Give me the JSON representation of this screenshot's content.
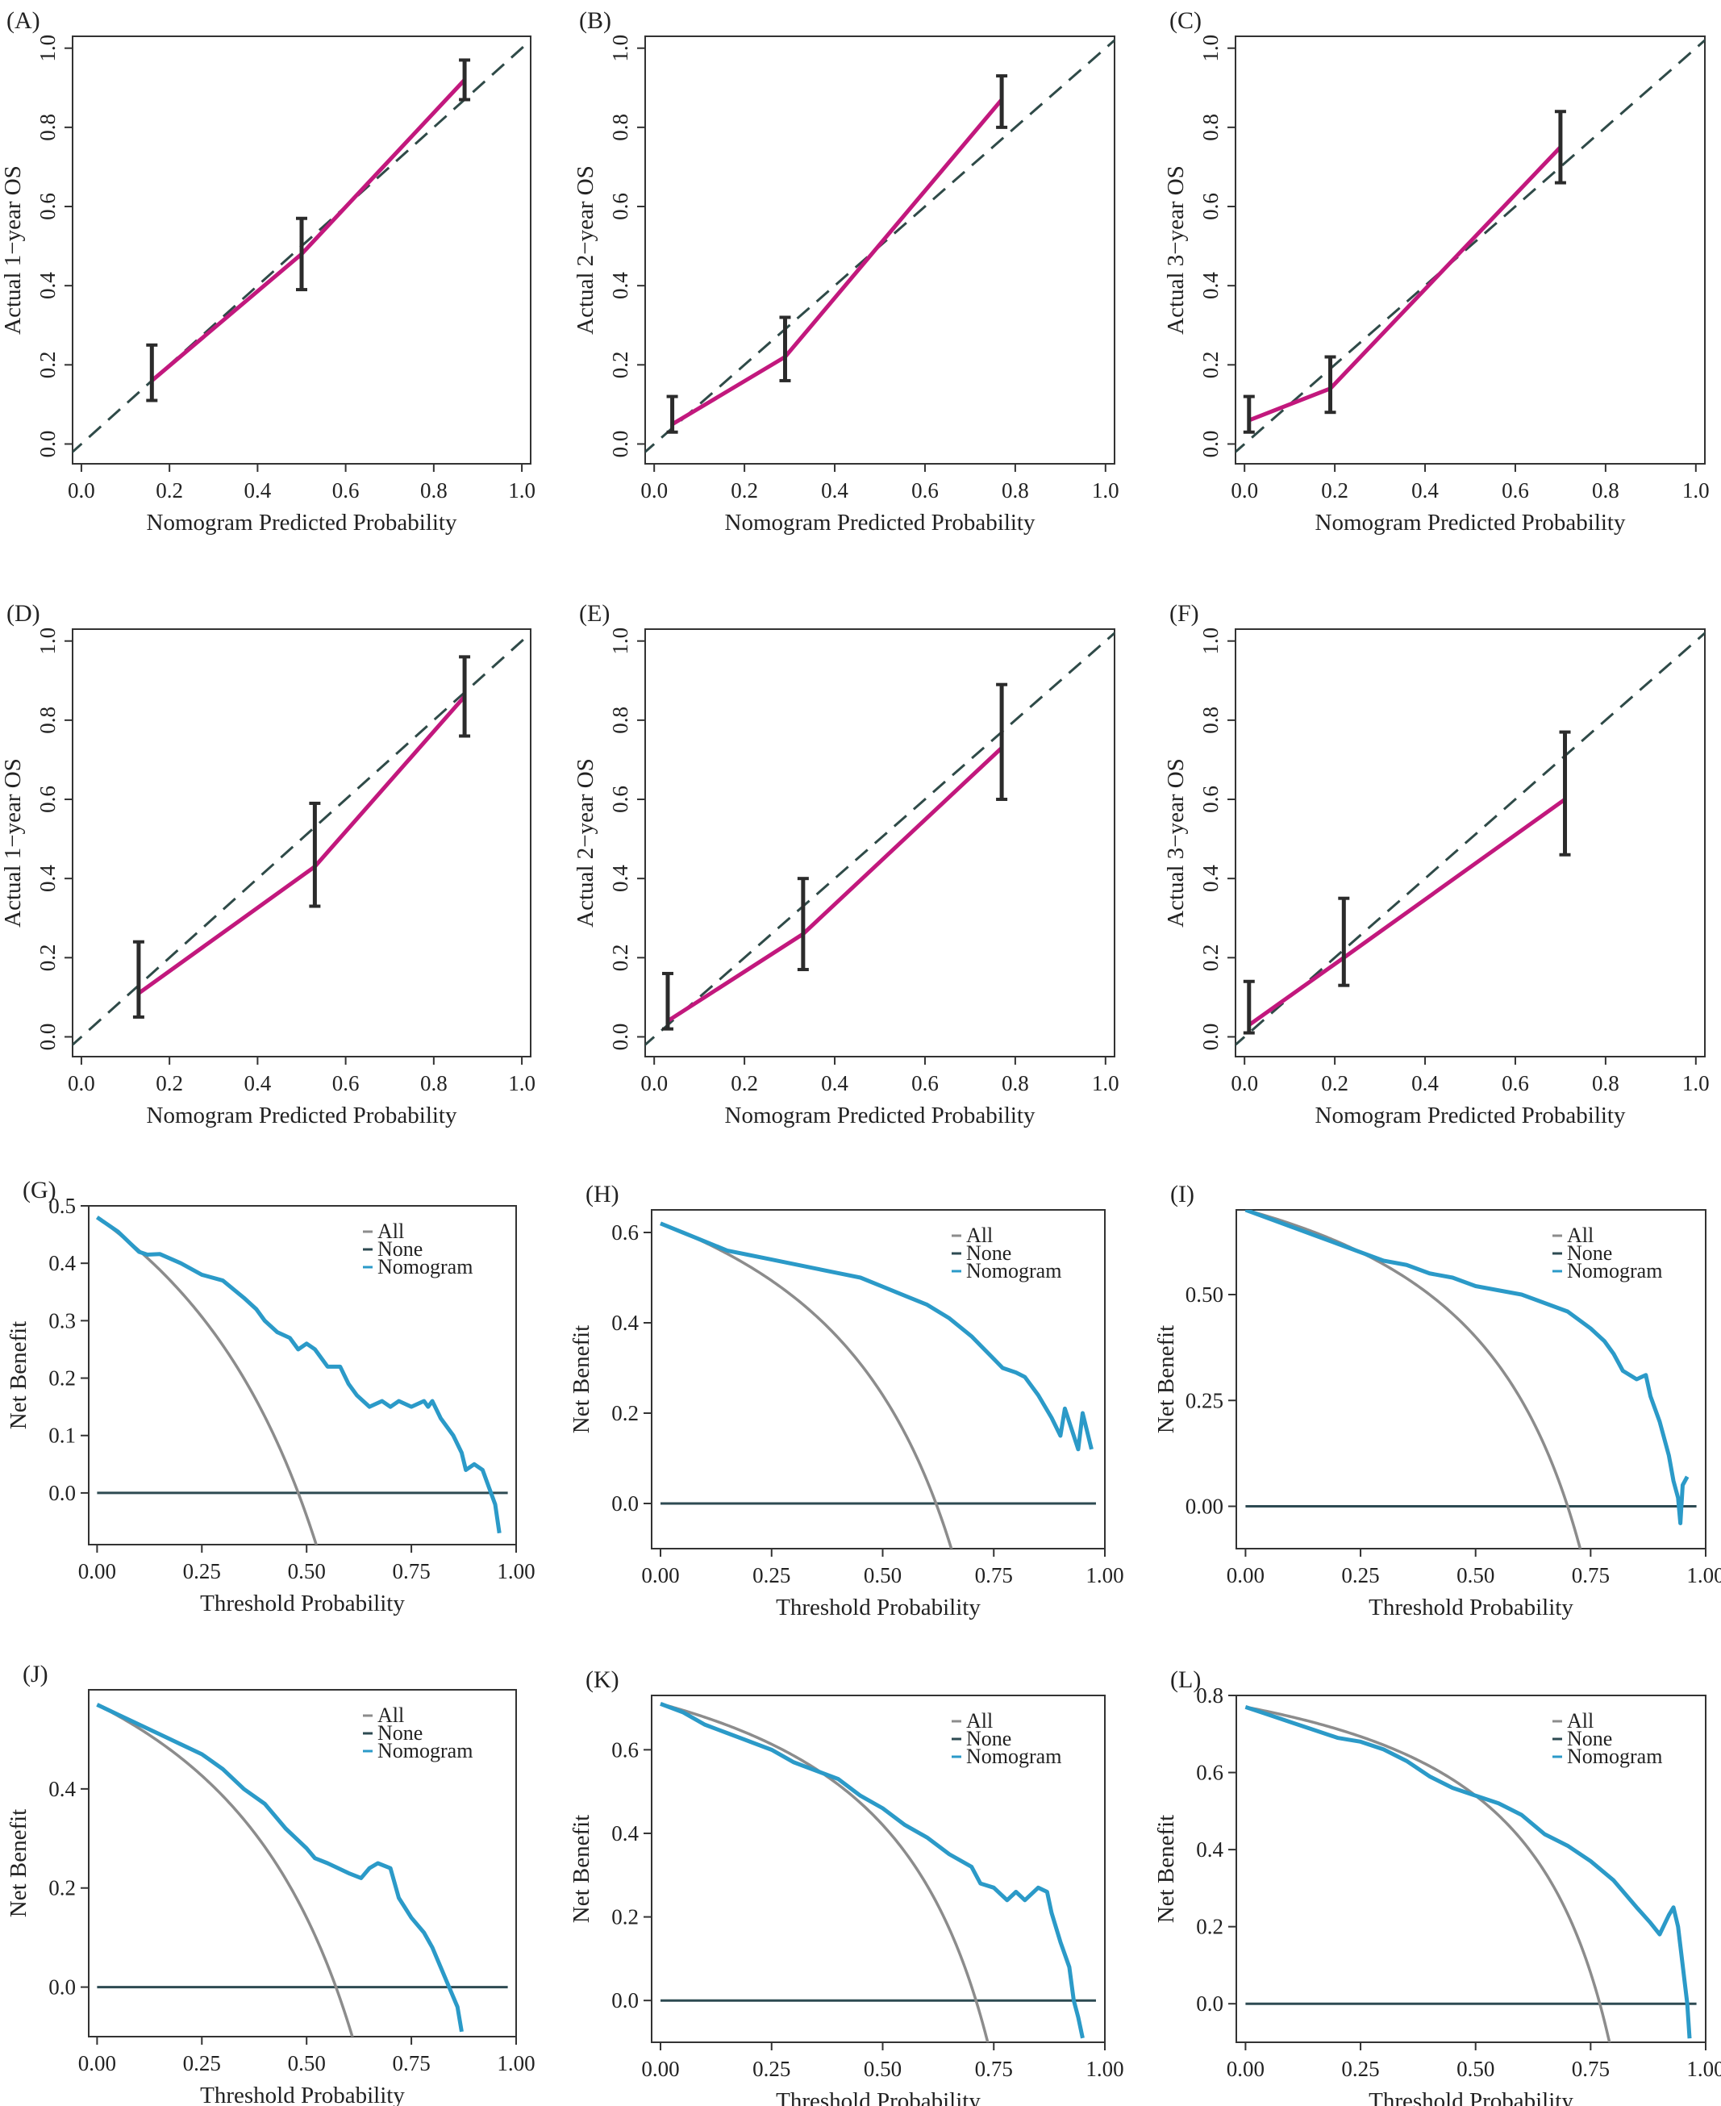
{
  "colors": {
    "calibration_line": "#c2187d",
    "diagonal": "#2f4a48",
    "error_bar": "#2b2b2b",
    "all_curve": "#8c8c8c",
    "none_line": "#2d4a52",
    "nomogram_curve": "#2b9ac8",
    "frame": "#333333"
  },
  "chart_data": [
    {
      "panel": "(A)",
      "type": "line",
      "xlabel": "Nomogram Predicted Probability",
      "ylabel": "Actual 1−year OS",
      "xlim": [
        -0.02,
        1.02
      ],
      "ylim": [
        -0.05,
        1.03
      ],
      "xticks": [
        "0.0",
        "0.2",
        "0.4",
        "0.6",
        "0.8",
        "1.0"
      ],
      "yticks": [
        "0.0",
        "0.2",
        "0.4",
        "0.6",
        "0.8",
        "1.0"
      ],
      "x": [
        0.16,
        0.5,
        0.87
      ],
      "y": [
        0.16,
        0.48,
        0.92
      ],
      "ci_low": [
        0.11,
        0.39,
        0.87
      ],
      "ci_high": [
        0.25,
        0.57,
        0.97
      ]
    },
    {
      "panel": "(B)",
      "type": "line",
      "xlabel": "Nomogram Predicted Probability",
      "ylabel": "Actual 2−year OS",
      "xlim": [
        -0.02,
        1.02
      ],
      "ylim": [
        -0.05,
        1.03
      ],
      "xticks": [
        "0.0",
        "0.2",
        "0.4",
        "0.6",
        "0.8",
        "1.0"
      ],
      "yticks": [
        "0.0",
        "0.2",
        "0.4",
        "0.6",
        "0.8",
        "1.0"
      ],
      "x": [
        0.04,
        0.29,
        0.77
      ],
      "y": [
        0.05,
        0.22,
        0.87
      ],
      "ci_low": [
        0.03,
        0.16,
        0.8
      ],
      "ci_high": [
        0.12,
        0.32,
        0.93
      ]
    },
    {
      "panel": "(C)",
      "type": "line",
      "xlabel": "Nomogram Predicted Probability",
      "ylabel": "Actual 3−year OS",
      "xlim": [
        -0.02,
        1.02
      ],
      "ylim": [
        -0.05,
        1.03
      ],
      "xticks": [
        "0.0",
        "0.2",
        "0.4",
        "0.6",
        "0.8",
        "1.0"
      ],
      "yticks": [
        "0.0",
        "0.2",
        "0.4",
        "0.6",
        "0.8",
        "1.0"
      ],
      "x": [
        0.01,
        0.19,
        0.7
      ],
      "y": [
        0.06,
        0.14,
        0.75
      ],
      "ci_low": [
        0.03,
        0.08,
        0.66
      ],
      "ci_high": [
        0.12,
        0.22,
        0.84
      ]
    },
    {
      "panel": "(D)",
      "type": "line",
      "xlabel": "Nomogram Predicted Probability",
      "ylabel": "Actual 1−year OS",
      "xlim": [
        -0.02,
        1.02
      ],
      "ylim": [
        -0.05,
        1.03
      ],
      "xticks": [
        "0.0",
        "0.2",
        "0.4",
        "0.6",
        "0.8",
        "1.0"
      ],
      "yticks": [
        "0.0",
        "0.2",
        "0.4",
        "0.6",
        "0.8",
        "1.0"
      ],
      "x": [
        0.13,
        0.53,
        0.87
      ],
      "y": [
        0.11,
        0.43,
        0.86
      ],
      "ci_low": [
        0.05,
        0.33,
        0.76
      ],
      "ci_high": [
        0.24,
        0.59,
        0.96
      ]
    },
    {
      "panel": "(E)",
      "type": "line",
      "xlabel": "Nomogram Predicted Probability",
      "ylabel": "Actual 2−year OS",
      "xlim": [
        -0.02,
        1.02
      ],
      "ylim": [
        -0.05,
        1.03
      ],
      "xticks": [
        "0.0",
        "0.2",
        "0.4",
        "0.6",
        "0.8",
        "1.0"
      ],
      "yticks": [
        "0.0",
        "0.2",
        "0.4",
        "0.6",
        "0.8",
        "1.0"
      ],
      "x": [
        0.03,
        0.33,
        0.77
      ],
      "y": [
        0.04,
        0.26,
        0.73
      ],
      "ci_low": [
        0.02,
        0.17,
        0.6
      ],
      "ci_high": [
        0.16,
        0.4,
        0.89
      ]
    },
    {
      "panel": "(F)",
      "type": "line",
      "xlabel": "Nomogram Predicted Probability",
      "ylabel": "Actual 3−year OS",
      "xlim": [
        -0.02,
        1.02
      ],
      "ylim": [
        -0.05,
        1.03
      ],
      "xticks": [
        "0.0",
        "0.2",
        "0.4",
        "0.6",
        "0.8",
        "1.0"
      ],
      "yticks": [
        "0.0",
        "0.2",
        "0.4",
        "0.6",
        "0.8",
        "1.0"
      ],
      "x": [
        0.01,
        0.22,
        0.71
      ],
      "y": [
        0.03,
        0.2,
        0.6
      ],
      "ci_low": [
        0.01,
        0.13,
        0.46
      ],
      "ci_high": [
        0.14,
        0.35,
        0.77
      ]
    },
    {
      "panel": "(G)",
      "type": "line",
      "xlabel": "Threshold Probability",
      "ylabel": "Net Benefit",
      "xlim": [
        -0.02,
        1.0
      ],
      "ylim": [
        -0.09,
        0.5
      ],
      "xticks": [
        "0.00",
        "0.25",
        "0.50",
        "0.75",
        "1.00"
      ],
      "yticks": [
        "0.0",
        "0.1",
        "0.2",
        "0.3",
        "0.4",
        "0.5"
      ],
      "legend": [
        "All",
        "None",
        "Nomogram"
      ],
      "prevalence": 0.48,
      "nomogram": {
        "x": [
          0.0,
          0.05,
          0.1,
          0.12,
          0.15,
          0.2,
          0.25,
          0.3,
          0.35,
          0.38,
          0.4,
          0.43,
          0.46,
          0.48,
          0.5,
          0.52,
          0.55,
          0.58,
          0.6,
          0.62,
          0.65,
          0.68,
          0.7,
          0.72,
          0.75,
          0.78,
          0.79,
          0.8,
          0.82,
          0.85,
          0.87,
          0.88,
          0.9,
          0.92,
          0.94,
          0.95,
          0.96
        ],
        "y": [
          0.48,
          0.455,
          0.42,
          0.415,
          0.416,
          0.4,
          0.38,
          0.37,
          0.34,
          0.32,
          0.3,
          0.28,
          0.27,
          0.25,
          0.26,
          0.25,
          0.22,
          0.22,
          0.19,
          0.17,
          0.15,
          0.16,
          0.15,
          0.16,
          0.15,
          0.16,
          0.15,
          0.16,
          0.13,
          0.1,
          0.07,
          0.04,
          0.05,
          0.04,
          0.0,
          -0.02,
          -0.07
        ]
      }
    },
    {
      "panel": "(H)",
      "type": "line",
      "xlabel": "Threshold Probability",
      "ylabel": "Net Benefit",
      "xlim": [
        -0.02,
        1.0
      ],
      "ylim": [
        -0.1,
        0.65
      ],
      "xticks": [
        "0.00",
        "0.25",
        "0.50",
        "0.75",
        "1.00"
      ],
      "yticks": [
        "0.0",
        "0.2",
        "0.4",
        "0.6"
      ],
      "legend": [
        "All",
        "None",
        "Nomogram"
      ],
      "prevalence": 0.62,
      "nomogram": {
        "x": [
          0.0,
          0.05,
          0.1,
          0.15,
          0.2,
          0.25,
          0.3,
          0.35,
          0.4,
          0.45,
          0.5,
          0.55,
          0.6,
          0.65,
          0.7,
          0.72,
          0.75,
          0.77,
          0.8,
          0.82,
          0.85,
          0.88,
          0.9,
          0.91,
          0.92,
          0.93,
          0.94,
          0.95,
          0.97
        ],
        "y": [
          0.62,
          0.6,
          0.58,
          0.56,
          0.55,
          0.54,
          0.53,
          0.52,
          0.51,
          0.5,
          0.48,
          0.46,
          0.44,
          0.41,
          0.37,
          0.35,
          0.32,
          0.3,
          0.29,
          0.28,
          0.24,
          0.19,
          0.15,
          0.21,
          0.18,
          0.15,
          0.12,
          0.2,
          0.12
        ]
      }
    },
    {
      "panel": "(I)",
      "type": "line",
      "xlabel": "Threshold Probability",
      "ylabel": "Net Benefit",
      "xlim": [
        -0.02,
        1.0
      ],
      "ylim": [
        -0.1,
        0.7
      ],
      "xticks": [
        "0.00",
        "0.25",
        "0.50",
        "0.75",
        "1.00"
      ],
      "yticks": [
        "0.00",
        "0.25",
        "0.50"
      ],
      "legend": [
        "All",
        "None",
        "Nomogram"
      ],
      "prevalence": 0.7,
      "nomogram": {
        "x": [
          0.0,
          0.05,
          0.1,
          0.15,
          0.2,
          0.25,
          0.3,
          0.35,
          0.4,
          0.45,
          0.5,
          0.55,
          0.6,
          0.65,
          0.7,
          0.75,
          0.78,
          0.8,
          0.82,
          0.85,
          0.87,
          0.88,
          0.9,
          0.92,
          0.93,
          0.94,
          0.945,
          0.95,
          0.96
        ],
        "y": [
          0.7,
          0.68,
          0.66,
          0.64,
          0.62,
          0.6,
          0.58,
          0.57,
          0.55,
          0.54,
          0.52,
          0.51,
          0.5,
          0.48,
          0.46,
          0.42,
          0.39,
          0.36,
          0.32,
          0.3,
          0.31,
          0.26,
          0.2,
          0.12,
          0.06,
          0.02,
          -0.04,
          0.05,
          0.07
        ]
      }
    },
    {
      "panel": "(J)",
      "type": "line",
      "xlabel": "Threshold Probability",
      "ylabel": "Net Benefit",
      "xlim": [
        -0.02,
        1.0
      ],
      "ylim": [
        -0.1,
        0.6
      ],
      "xticks": [
        "0.00",
        "0.25",
        "0.50",
        "0.75",
        "1.00"
      ],
      "yticks": [
        "0.0",
        "0.2",
        "0.4"
      ],
      "legend": [
        "All",
        "None",
        "Nomogram"
      ],
      "prevalence": 0.57,
      "nomogram": {
        "x": [
          0.0,
          0.05,
          0.1,
          0.15,
          0.2,
          0.25,
          0.3,
          0.35,
          0.4,
          0.45,
          0.5,
          0.52,
          0.55,
          0.6,
          0.63,
          0.65,
          0.67,
          0.7,
          0.72,
          0.75,
          0.78,
          0.8,
          0.82,
          0.84,
          0.86,
          0.87
        ],
        "y": [
          0.57,
          0.55,
          0.53,
          0.51,
          0.49,
          0.47,
          0.44,
          0.4,
          0.37,
          0.32,
          0.28,
          0.26,
          0.25,
          0.23,
          0.22,
          0.24,
          0.25,
          0.24,
          0.18,
          0.14,
          0.11,
          0.08,
          0.04,
          0.0,
          -0.04,
          -0.09
        ]
      }
    },
    {
      "panel": "(K)",
      "type": "line",
      "xlabel": "Threshold Probability",
      "ylabel": "Net Benefit",
      "xlim": [
        -0.02,
        1.0
      ],
      "ylim": [
        -0.1,
        0.73
      ],
      "xticks": [
        "0.00",
        "0.25",
        "0.50",
        "0.75",
        "1.00"
      ],
      "yticks": [
        "0.0",
        "0.2",
        "0.4",
        "0.6"
      ],
      "legend": [
        "All",
        "None",
        "Nomogram"
      ],
      "prevalence": 0.71,
      "nomogram": {
        "x": [
          0.0,
          0.05,
          0.1,
          0.15,
          0.2,
          0.25,
          0.3,
          0.35,
          0.4,
          0.45,
          0.5,
          0.55,
          0.6,
          0.65,
          0.7,
          0.72,
          0.75,
          0.78,
          0.8,
          0.82,
          0.85,
          0.87,
          0.88,
          0.9,
          0.92,
          0.93,
          0.94,
          0.95
        ],
        "y": [
          0.71,
          0.69,
          0.66,
          0.64,
          0.62,
          0.6,
          0.57,
          0.55,
          0.53,
          0.49,
          0.46,
          0.42,
          0.39,
          0.35,
          0.32,
          0.28,
          0.27,
          0.24,
          0.26,
          0.24,
          0.27,
          0.26,
          0.21,
          0.14,
          0.08,
          0.0,
          -0.04,
          -0.09
        ]
      }
    },
    {
      "panel": "(L)",
      "type": "line",
      "xlabel": "Threshold Probability",
      "ylabel": "Net Benefit",
      "xlim": [
        -0.02,
        1.0
      ],
      "ylim": [
        -0.1,
        0.8
      ],
      "xticks": [
        "0.00",
        "0.25",
        "0.50",
        "0.75",
        "1.00"
      ],
      "yticks": [
        "0.0",
        "0.2",
        "0.4",
        "0.6",
        "0.8"
      ],
      "legend": [
        "All",
        "None",
        "Nomogram"
      ],
      "prevalence": 0.77,
      "nomogram": {
        "x": [
          0.0,
          0.05,
          0.1,
          0.15,
          0.2,
          0.25,
          0.3,
          0.35,
          0.4,
          0.45,
          0.5,
          0.55,
          0.6,
          0.65,
          0.7,
          0.75,
          0.8,
          0.85,
          0.88,
          0.9,
          0.92,
          0.93,
          0.94,
          0.95,
          0.96,
          0.965
        ],
        "y": [
          0.77,
          0.75,
          0.73,
          0.71,
          0.69,
          0.68,
          0.66,
          0.63,
          0.59,
          0.56,
          0.54,
          0.52,
          0.49,
          0.44,
          0.41,
          0.37,
          0.32,
          0.25,
          0.21,
          0.18,
          0.23,
          0.25,
          0.2,
          0.1,
          0.0,
          -0.09
        ]
      }
    }
  ]
}
